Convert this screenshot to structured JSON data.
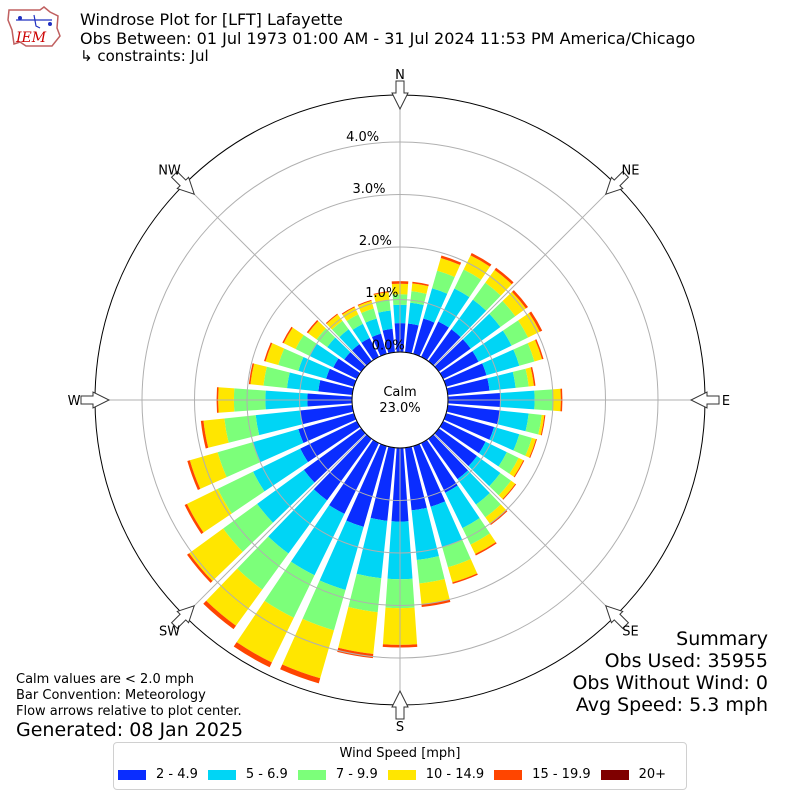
{
  "header": {
    "title": "Windrose Plot for [LFT] Lafayette",
    "obs_between": "Obs Between: 01 Jul 1973 01:00 AM - 31 Jul 2024 11:53 PM America/Chicago",
    "constraints": "↳ constraints: Jul",
    "logo_text": "IEM"
  },
  "summary": {
    "heading": "Summary",
    "obs_used": "Obs Used: 35955",
    "obs_without_wind": "Obs Without Wind: 0",
    "avg_speed": "Avg Speed: 5.3 mph"
  },
  "notes": {
    "calm_values": "Calm values are < 2.0 mph",
    "bar_convention": "Bar Convention: Meteorology",
    "flow_arrows": "Flow arrows relative to plot center.",
    "generated": "Generated: 08 Jan 2025"
  },
  "chart_data": {
    "type": "windrose",
    "calm_label": "Calm",
    "calm_value": "23.0%",
    "radial_ticks": [
      "0.0%",
      "1.0%",
      "2.0%",
      "3.0%",
      "4.0%"
    ],
    "compass_labels": {
      "N": "N",
      "NE": "NE",
      "E": "E",
      "SE": "SE",
      "S": "S",
      "SW": "SW",
      "W": "W",
      "NW": "NW"
    },
    "legend": {
      "title": "Wind Speed [mph]",
      "bins": [
        {
          "label": "2 - 4.9",
          "color": "#0a2dff"
        },
        {
          "label": "5 - 6.9",
          "color": "#00d5f5"
        },
        {
          "label": "7 - 9.9",
          "color": "#7cff7a"
        },
        {
          "label": "10 - 14.9",
          "color": "#ffe600"
        },
        {
          "label": "15 - 19.9",
          "color": "#ff4500"
        },
        {
          "label": "20+",
          "color": "#7f0000"
        }
      ]
    },
    "directions": [
      {
        "deg": 0,
        "values": [
          0.55,
          0.35,
          0.2,
          0.2,
          0.05,
          0.0
        ]
      },
      {
        "deg": 10,
        "values": [
          0.55,
          0.4,
          0.22,
          0.15,
          0.03,
          0.0
        ]
      },
      {
        "deg": 20,
        "values": [
          0.7,
          0.6,
          0.35,
          0.25,
          0.05,
          0.0
        ]
      },
      {
        "deg": 30,
        "values": [
          0.75,
          0.7,
          0.4,
          0.3,
          0.05,
          0.0
        ]
      },
      {
        "deg": 40,
        "values": [
          0.75,
          0.7,
          0.4,
          0.3,
          0.05,
          0.0
        ]
      },
      {
        "deg": 50,
        "values": [
          0.75,
          0.7,
          0.35,
          0.25,
          0.05,
          0.0
        ]
      },
      {
        "deg": 60,
        "values": [
          0.75,
          0.7,
          0.35,
          0.25,
          0.05,
          0.0
        ]
      },
      {
        "deg": 70,
        "values": [
          0.8,
          0.65,
          0.3,
          0.15,
          0.03,
          0.0
        ]
      },
      {
        "deg": 80,
        "values": [
          0.8,
          0.5,
          0.25,
          0.1,
          0.03,
          0.0
        ]
      },
      {
        "deg": 90,
        "values": [
          1.0,
          0.65,
          0.35,
          0.15,
          0.03,
          0.0
        ]
      },
      {
        "deg": 100,
        "values": [
          1.0,
          0.55,
          0.25,
          0.05,
          0.02,
          0.0
        ]
      },
      {
        "deg": 110,
        "values": [
          0.95,
          0.5,
          0.25,
          0.08,
          0.02,
          0.0
        ]
      },
      {
        "deg": 120,
        "values": [
          0.9,
          0.45,
          0.25,
          0.1,
          0.02,
          0.0
        ]
      },
      {
        "deg": 130,
        "values": [
          0.9,
          0.55,
          0.25,
          0.1,
          0.02,
          0.0
        ]
      },
      {
        "deg": 140,
        "values": [
          0.95,
          0.6,
          0.3,
          0.15,
          0.03,
          0.0
        ]
      },
      {
        "deg": 150,
        "values": [
          1.05,
          0.75,
          0.35,
          0.2,
          0.03,
          0.0
        ]
      },
      {
        "deg": 160,
        "values": [
          1.2,
          0.8,
          0.4,
          0.3,
          0.03,
          0.0
        ]
      },
      {
        "deg": 170,
        "values": [
          1.2,
          0.95,
          0.45,
          0.4,
          0.05,
          0.0
        ]
      },
      {
        "deg": 180,
        "values": [
          1.4,
          1.1,
          0.55,
          0.7,
          0.05,
          0.0
        ]
      },
      {
        "deg": 190,
        "values": [
          1.4,
          1.1,
          0.65,
          0.8,
          0.08,
          0.0
        ]
      },
      {
        "deg": 200,
        "values": [
          1.6,
          1.25,
          0.8,
          0.95,
          0.1,
          0.0
        ]
      },
      {
        "deg": 210,
        "values": [
          1.5,
          1.3,
          0.9,
          0.95,
          0.1,
          0.0
        ]
      },
      {
        "deg": 220,
        "values": [
          1.45,
          1.25,
          0.85,
          0.85,
          0.08,
          0.0
        ]
      },
      {
        "deg": 230,
        "values": [
          1.35,
          1.1,
          0.8,
          0.8,
          0.05,
          0.0
        ]
      },
      {
        "deg": 240,
        "values": [
          1.2,
          1.0,
          0.75,
          0.65,
          0.05,
          0.0
        ]
      },
      {
        "deg": 250,
        "values": [
          1.1,
          0.9,
          0.7,
          0.55,
          0.05,
          0.0
        ]
      },
      {
        "deg": 260,
        "values": [
          1.0,
          0.85,
          0.6,
          0.4,
          0.05,
          0.0
        ]
      },
      {
        "deg": 270,
        "values": [
          0.85,
          0.8,
          0.6,
          0.3,
          0.03,
          0.0
        ]
      },
      {
        "deg": 280,
        "values": [
          0.65,
          0.6,
          0.45,
          0.25,
          0.03,
          0.0
        ]
      },
      {
        "deg": 290,
        "values": [
          0.55,
          0.55,
          0.4,
          0.25,
          0.03,
          0.0
        ]
      },
      {
        "deg": 300,
        "values": [
          0.5,
          0.5,
          0.3,
          0.25,
          0.03,
          0.0
        ]
      },
      {
        "deg": 310,
        "values": [
          0.4,
          0.4,
          0.25,
          0.2,
          0.03,
          0.0
        ]
      },
      {
        "deg": 320,
        "values": [
          0.4,
          0.35,
          0.2,
          0.15,
          0.02,
          0.0
        ]
      },
      {
        "deg": 330,
        "values": [
          0.4,
          0.3,
          0.2,
          0.15,
          0.02,
          0.0
        ]
      },
      {
        "deg": 340,
        "values": [
          0.4,
          0.3,
          0.2,
          0.15,
          0.02,
          0.0
        ]
      },
      {
        "deg": 350,
        "values": [
          0.45,
          0.35,
          0.2,
          0.15,
          0.02,
          0.0
        ]
      }
    ]
  }
}
